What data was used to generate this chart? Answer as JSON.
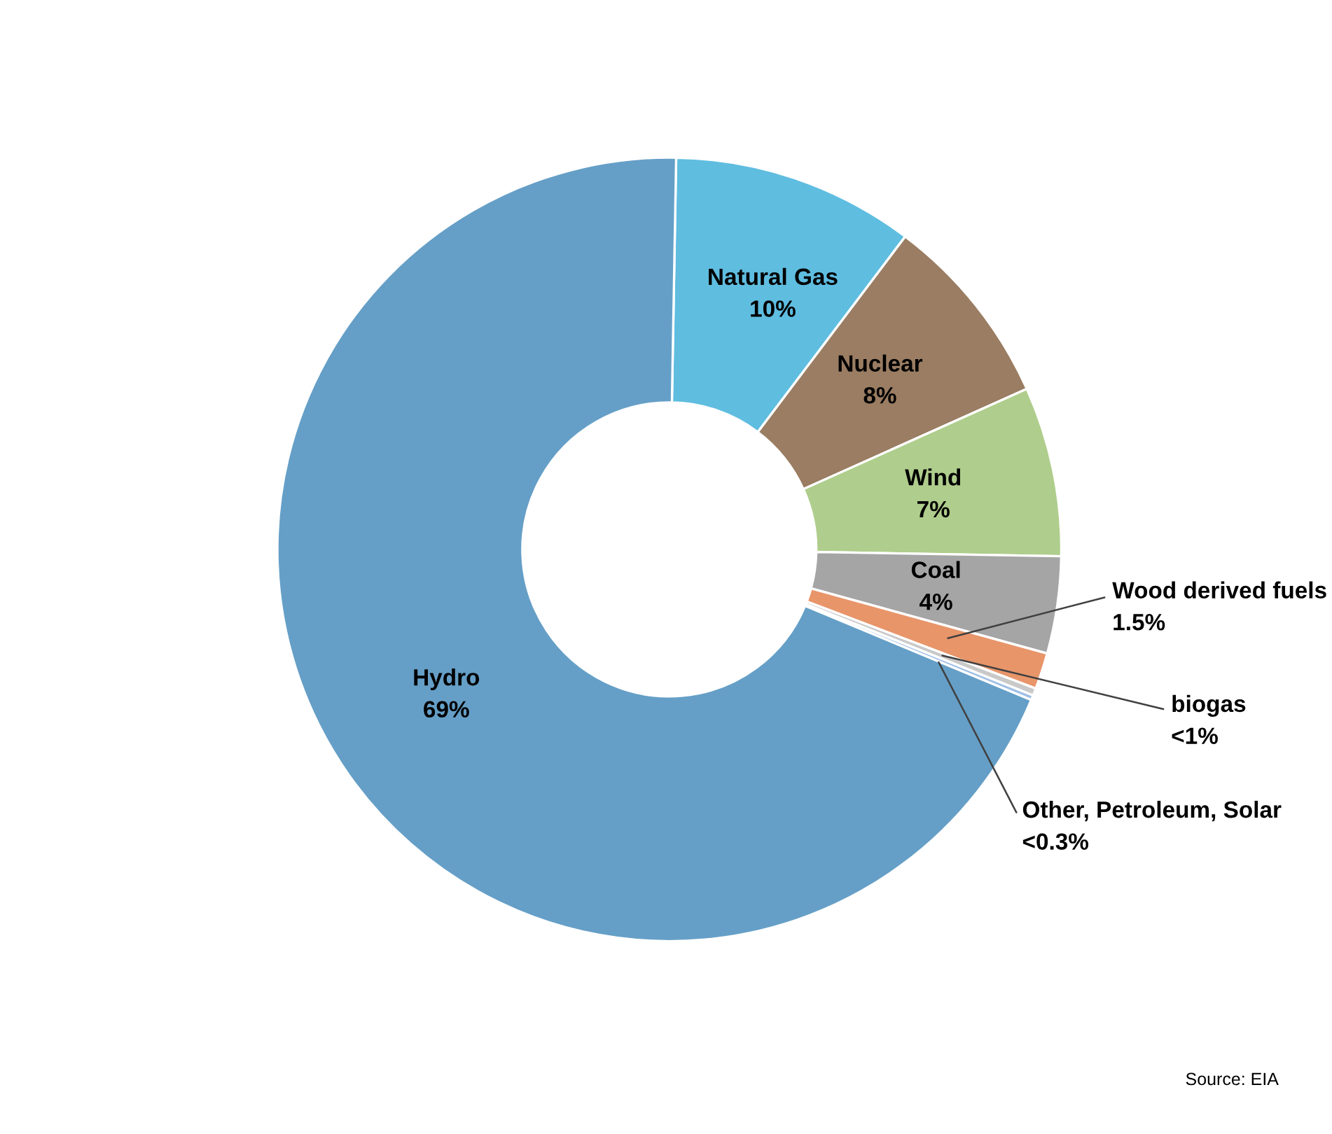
{
  "chart_data": {
    "type": "donut",
    "categories": [
      "Natural Gas",
      "Nuclear",
      "Wind",
      "Coal",
      "Wood derived fuels",
      "biogas",
      "Other, Petroleum, Solar",
      "Hydro"
    ],
    "values": [
      10,
      8,
      7,
      4,
      1.5,
      0.3,
      0.2,
      69
    ],
    "value_labels": [
      "10%",
      "8%",
      "7%",
      "4%",
      "1.5%",
      "<1%",
      "<0.3%",
      "69%"
    ],
    "colors": [
      "#5fbde0",
      "#9a7d62",
      "#afcd8c",
      "#a5a5a5",
      "#e8956a",
      "#c9c9c9",
      "#9fbfe6",
      "#659fc7"
    ],
    "annotations": [
      "Source: EIA"
    ]
  }
}
